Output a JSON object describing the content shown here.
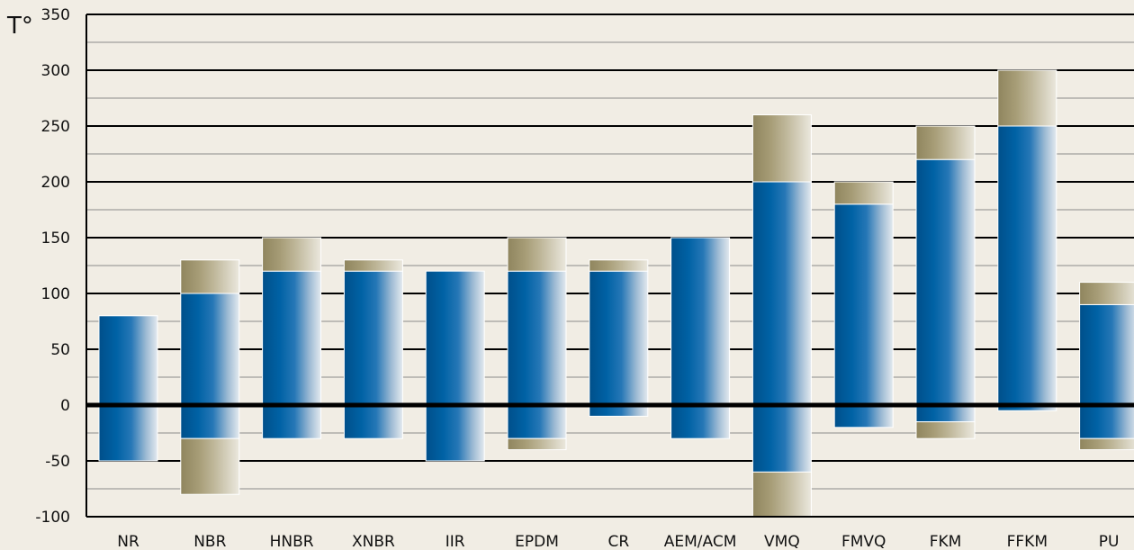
{
  "chart_data": {
    "type": "bar",
    "ylabel": "T°",
    "ylim": [
      -100,
      350
    ],
    "yticks": [
      "350",
      "300",
      "250",
      "200",
      "150",
      "100",
      "50",
      "0",
      "-50",
      "-100"
    ],
    "categories": [
      "NR",
      "NBR",
      "HNBR",
      "XNBR",
      "IIR",
      "EPDM",
      "CR",
      "AEM/ACM",
      "VMQ",
      "FMVQ",
      "FKM",
      "FFKM",
      "PU"
    ],
    "series": [
      {
        "values": [
          {
            "low": -50,
            "high": 80
          },
          {
            "low": -30,
            "high": 100
          },
          {
            "low": -30,
            "high": 120
          },
          {
            "low": -30,
            "high": 120
          },
          {
            "low": -50,
            "high": 120
          },
          {
            "low": -30,
            "high": 120
          },
          {
            "low": -10,
            "high": 120
          },
          {
            "low": -30,
            "high": 150
          },
          {
            "low": -60,
            "high": 200
          },
          {
            "low": -20,
            "high": 180
          },
          {
            "low": -15,
            "high": 220
          },
          {
            "low": -5,
            "high": 250
          },
          {
            "low": -30,
            "high": 90
          }
        ]
      },
      {
        "values": [
          {
            "low": null,
            "high": null
          },
          {
            "low": -80,
            "high": 130
          },
          {
            "low": null,
            "high": 150
          },
          {
            "low": null,
            "high": 130
          },
          {
            "low": null,
            "high": null
          },
          {
            "low": -40,
            "high": 150
          },
          {
            "low": null,
            "high": 130
          },
          {
            "low": null,
            "high": null
          },
          {
            "low": -100,
            "high": 260
          },
          {
            "low": null,
            "high": 200
          },
          {
            "low": -30,
            "high": 250
          },
          {
            "low": null,
            "high": 300
          },
          {
            "low": -40,
            "high": 110
          }
        ]
      }
    ],
    "grid": true,
    "colors": {
      "background": "#f1ede4",
      "range": "#005b9a",
      "extended": "#aaa07c",
      "axis": "#000000",
      "grid": "#8a8a8a"
    }
  }
}
